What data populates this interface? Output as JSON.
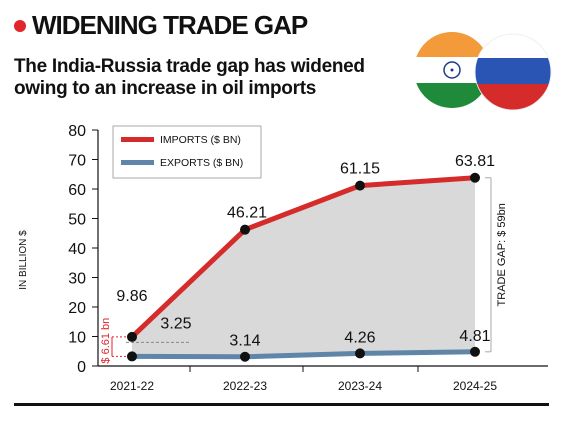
{
  "title": "WIDENING TRADE GAP",
  "subtitle": "The India-Russia trade gap has widened owing to an increase in oil imports",
  "colors": {
    "accent": "#e0262b",
    "imports": "#d62b2b",
    "exports": "#5f86a8",
    "gap_fill": "#d9d9d9"
  },
  "chart_data": {
    "type": "line",
    "categories": [
      "2021-22",
      "2022-23",
      "2023-24",
      "2024-25"
    ],
    "series": [
      {
        "name": "IMPORTS ($ BN)",
        "values": [
          9.86,
          46.21,
          61.15,
          63.81
        ]
      },
      {
        "name": "EXPORTS ($ BN)",
        "values": [
          3.25,
          3.14,
          4.26,
          4.81
        ]
      }
    ],
    "point_labels": {
      "imports": [
        "9.86",
        "46.21",
        "61.15",
        "63.81"
      ],
      "exports": [
        "3.25",
        "3.14",
        "4.26",
        "4.81"
      ]
    },
    "ylabel": "IN BILLION $",
    "ylim": [
      0,
      80
    ],
    "yticks": [
      0,
      10,
      20,
      30,
      40,
      50,
      60,
      70,
      80
    ],
    "legend_position": "top-left",
    "annotations": [
      {
        "text": "$ 6.61 bn",
        "category": "2021-22"
      },
      {
        "text": "TRADE GAP: $ 59bn",
        "category": "2024-25"
      }
    ],
    "grid": false
  }
}
